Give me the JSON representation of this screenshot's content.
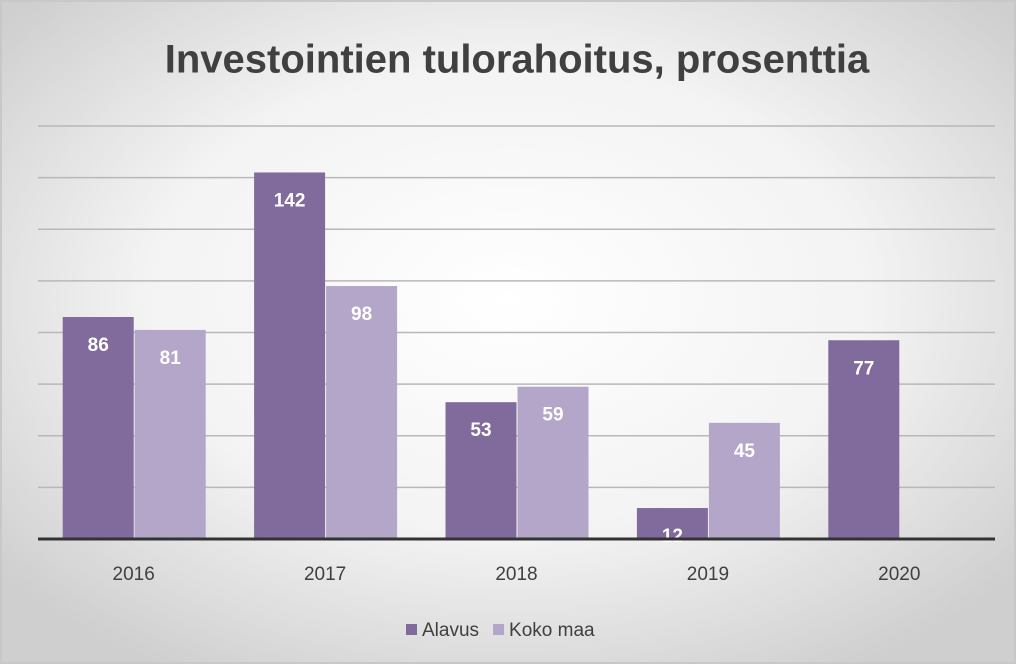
{
  "chart_data": {
    "type": "bar",
    "title": "Investointien tulorahoitus, prosenttia",
    "categories": [
      "2016",
      "2017",
      "2018",
      "2019",
      "2020"
    ],
    "series": [
      {
        "name": "Alavus",
        "color": "#806b9c",
        "values": [
          86,
          142,
          53,
          12,
          77
        ]
      },
      {
        "name": "Koko maa",
        "color": "#b4a6c9",
        "values": [
          81,
          98,
          59,
          45,
          null
        ]
      }
    ],
    "ylim": [
      0,
      160
    ],
    "yticks": [
      0,
      20,
      40,
      60,
      80,
      100,
      120,
      140,
      160
    ],
    "grid": true,
    "legend": "bottom"
  }
}
